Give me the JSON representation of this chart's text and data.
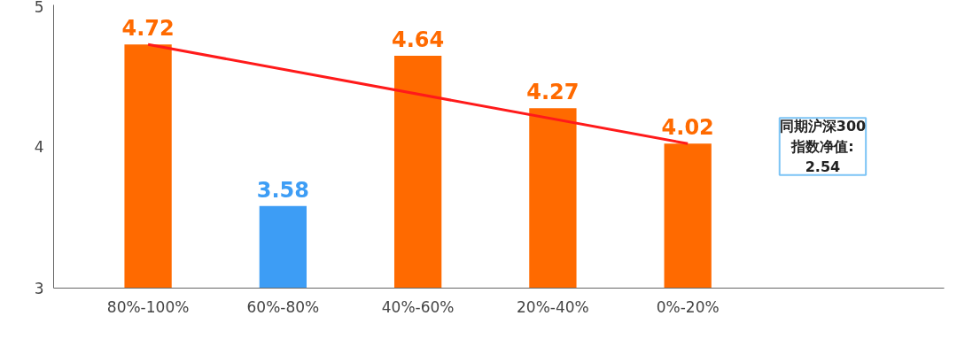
{
  "chart_data": {
    "type": "bar",
    "categories": [
      "80%-100%",
      "60%-80%",
      "40%-60%",
      "20%-40%",
      "0%-20%"
    ],
    "series": [
      {
        "values": [
          4.72,
          3.58,
          4.64,
          4.27,
          4.02
        ],
        "value_labels": [
          "4.72",
          "3.58",
          "4.64",
          "4.27",
          "4.02"
        ],
        "colors": [
          "#ff6a00",
          "#3d9df5",
          "#ff6a00",
          "#ff6a00",
          "#ff6a00"
        ]
      },
      {
        "type": "line",
        "color": "#ff1a1a",
        "x": [
          "80%-100%",
          "0%-20%"
        ],
        "values": [
          4.72,
          4.02
        ]
      }
    ],
    "ylim": [
      3,
      5
    ],
    "yticks": [
      3,
      4,
      5
    ],
    "grid": false,
    "annotations": [
      "同期沪深300\n指数净值:\n2.54"
    ]
  }
}
